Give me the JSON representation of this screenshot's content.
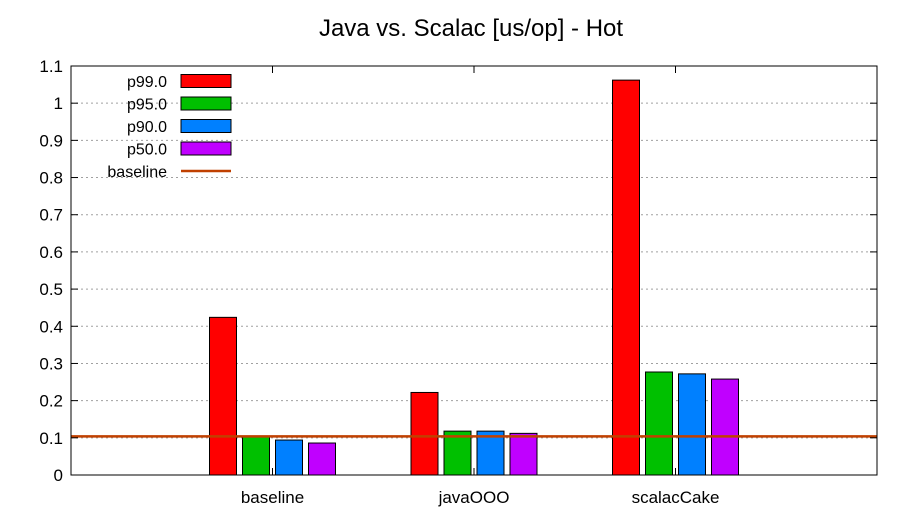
{
  "chart_data": {
    "type": "bar",
    "title": "Java vs. Scalac [us/op] - Hot",
    "xlabel": "",
    "ylabel": "",
    "ylim": [
      0,
      1.1
    ],
    "yticks": [
      "0",
      "0.1",
      "0.2",
      "0.3",
      "0.4",
      "0.5",
      "0.6",
      "0.7",
      "0.8",
      "0.9",
      "1",
      "1.1"
    ],
    "grid": "horizontal dotted",
    "legend_placement": "top-left",
    "categories": [
      "baseline",
      "javaOOO",
      "scalacCake"
    ],
    "series": [
      {
        "name": "p99.0",
        "color": "#ff0000",
        "values": [
          0.424,
          0.222,
          1.062
        ]
      },
      {
        "name": "p95.0",
        "color": "#00c000",
        "values": [
          0.104,
          0.118,
          0.277
        ]
      },
      {
        "name": "p90.0",
        "color": "#0080ff",
        "values": [
          0.094,
          0.118,
          0.272
        ]
      },
      {
        "name": "p50.0",
        "color": "#c000ff",
        "values": [
          0.086,
          0.112,
          0.258
        ]
      }
    ],
    "reference_line": {
      "name": "baseline",
      "value": 0.104,
      "color": "#c04000"
    }
  }
}
